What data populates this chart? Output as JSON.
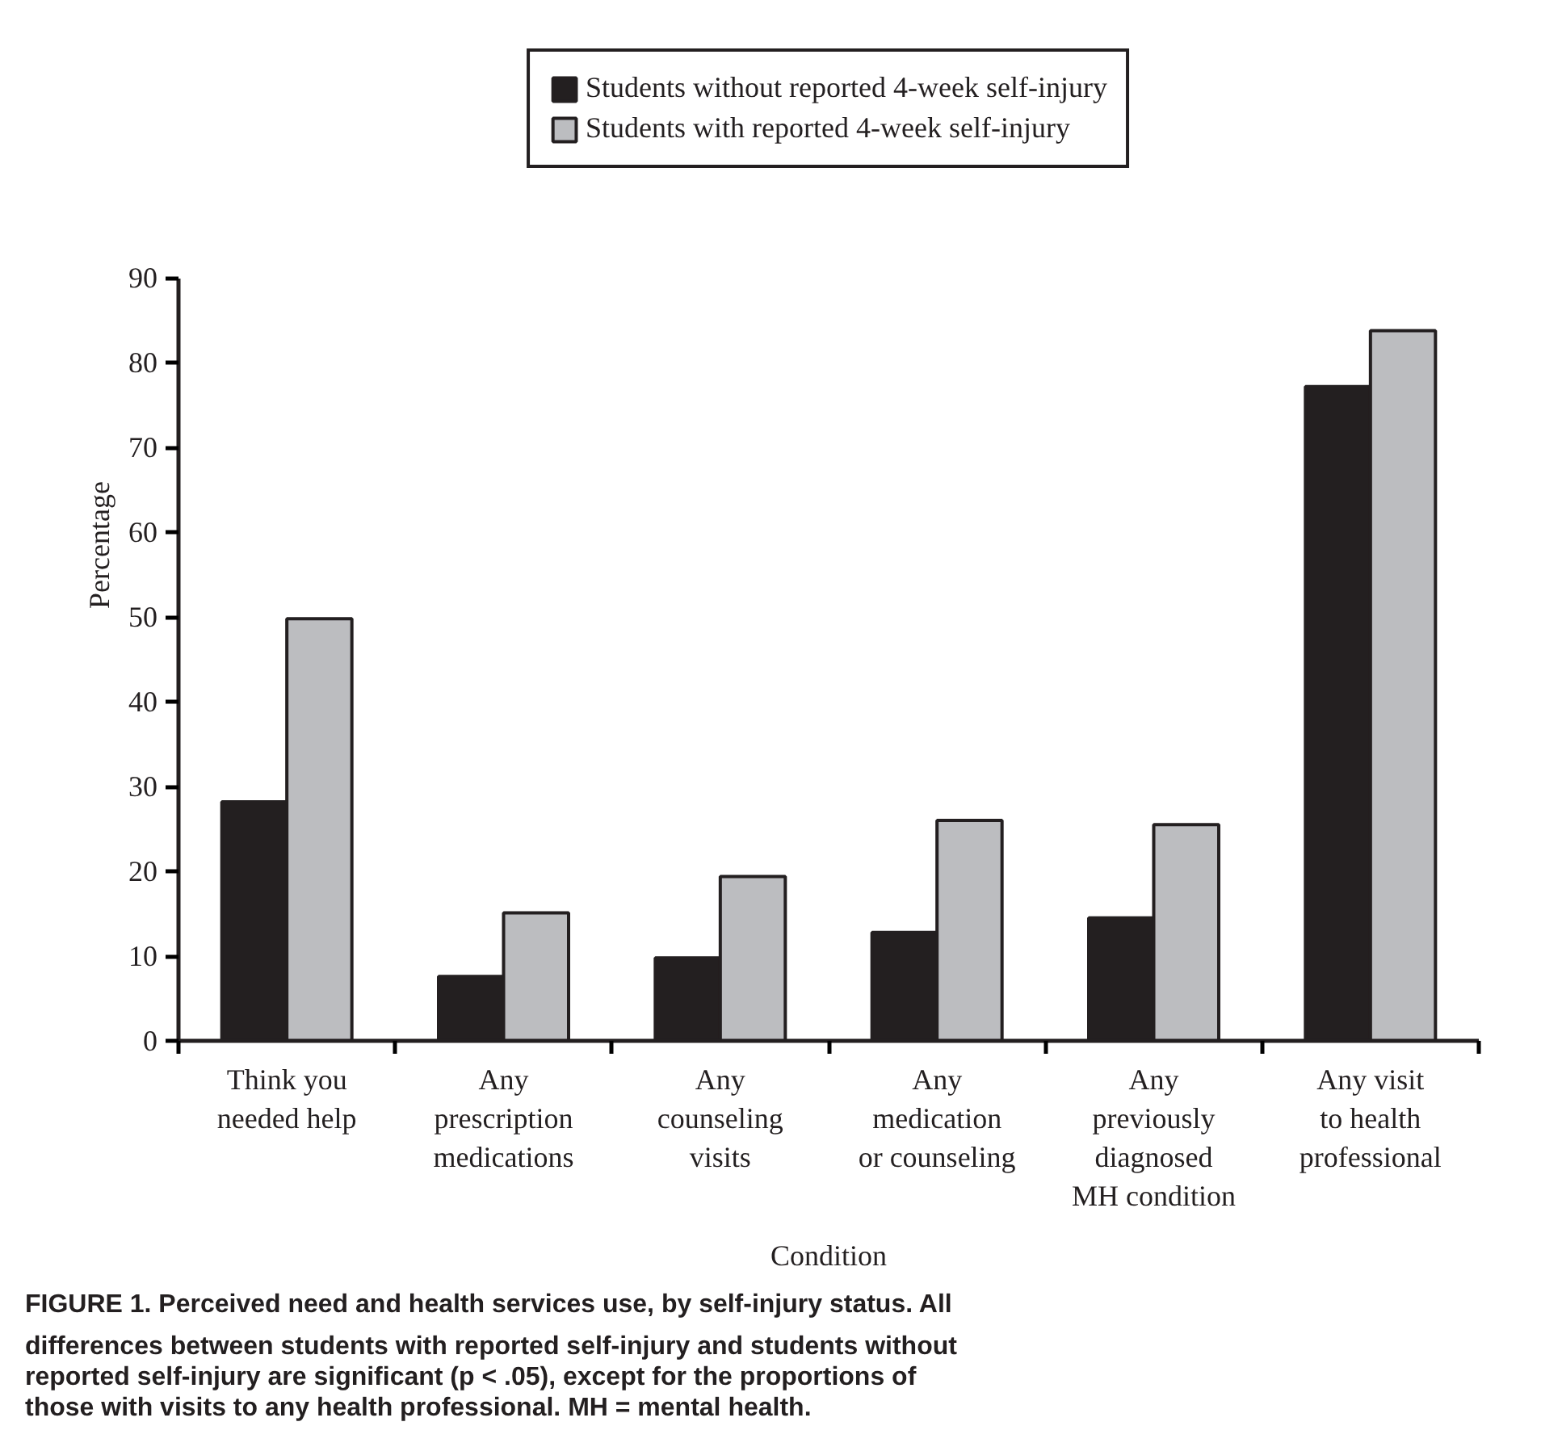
{
  "chart_data": {
    "type": "bar",
    "categories": [
      "Think you\nneeded help",
      "Any\nprescription\nmedications",
      "Any\ncounseling\nvisits",
      "Any\nmedication\nor counseling",
      "Any\npreviously\ndiagnosed\nMH condition",
      "Any visit\nto health\nprofessional"
    ],
    "series": [
      {
        "name": "Students without reported 4-week self-injury",
        "color": "#231f20",
        "values": [
          28.2,
          7.6,
          9.8,
          12.8,
          14.5,
          77.2
        ]
      },
      {
        "name": "Students with reported 4-week self-injury",
        "color": "#bcbdc0",
        "values": [
          49.8,
          15.1,
          19.4,
          26.0,
          25.5,
          83.8
        ]
      }
    ],
    "xlabel": "Condition",
    "ylabel": "Percentage",
    "ylim": [
      0,
      90
    ],
    "yticks": [
      0,
      10,
      20,
      30,
      40,
      50,
      60,
      70,
      80,
      90
    ],
    "grid": false,
    "legend": "top",
    "annotations": [
      "FIGURE 1. Perceived need and health services use, by self-injury status. All differences between students with reported self-injury and students without reported self-injury are significant (p < .05), except for the proportions of those with visits to any health professional. MH = mental health."
    ]
  }
}
